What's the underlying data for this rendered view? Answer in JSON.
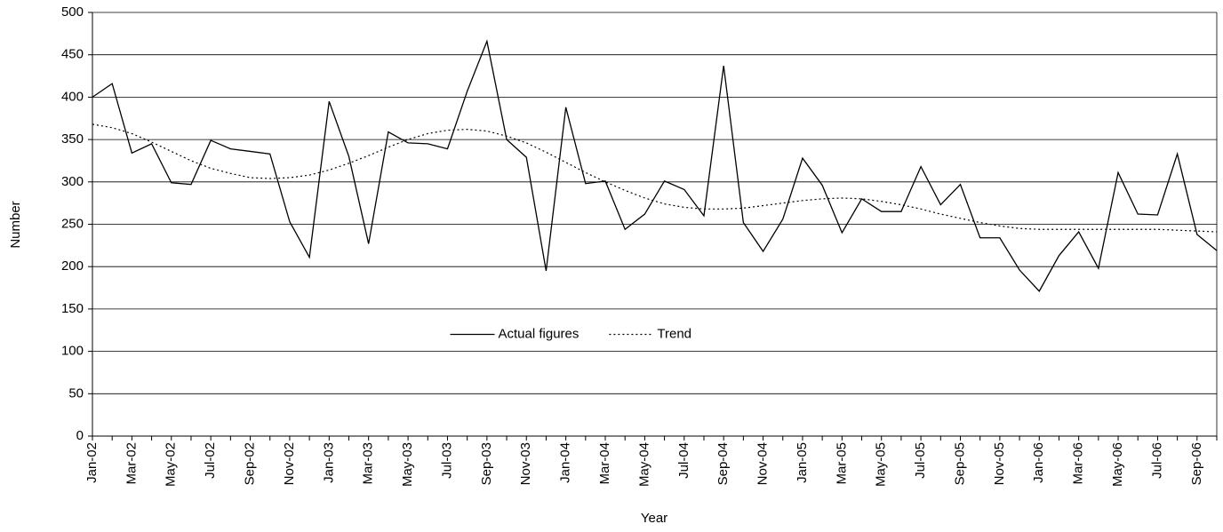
{
  "chart_data": {
    "type": "line",
    "x_label": "Year",
    "y_label": "Number",
    "categories": [
      "Jan-02",
      null,
      "Mar-02",
      null,
      "May-02",
      null,
      "Jul-02",
      null,
      "Sep-02",
      null,
      "Nov-02",
      null,
      "Jan-03",
      null,
      "Mar-03",
      null,
      "May-03",
      null,
      "Jul-03",
      null,
      "Sep-03",
      null,
      "Nov-03",
      null,
      "Jan-04",
      null,
      "Mar-04",
      null,
      "May-04",
      null,
      "Jul-04",
      null,
      "Sep-04",
      null,
      "Nov-04",
      null,
      "Jan-05",
      null,
      "Mar-05",
      null,
      "May-05",
      null,
      "Jul-05",
      null,
      "Sep-05",
      null,
      "Nov-05",
      null,
      "Jan-06",
      null,
      "Mar-06",
      null,
      "May-06",
      null,
      "Jul-06",
      null,
      "Sep-06",
      null
    ],
    "series": [
      {
        "name": "Actual figures",
        "color": "#000000",
        "dash": "solid",
        "values": [
          400,
          416,
          334,
          345,
          299,
          297,
          349,
          339,
          336,
          333,
          253,
          211,
          395,
          330,
          227,
          359,
          346,
          345,
          339,
          407,
          466,
          350,
          329,
          195,
          388,
          298,
          301,
          244,
          262,
          301,
          291,
          260,
          437,
          252,
          218,
          256,
          328,
          296,
          240,
          280,
          265,
          265,
          318,
          273,
          297,
          234,
          234,
          196,
          171,
          213,
          241,
          198,
          311,
          262,
          261,
          333,
          238,
          219
        ]
      },
      {
        "name": "Trend",
        "color": "#000000",
        "dash": "dotted",
        "values": [
          368,
          364,
          357,
          347,
          336,
          325,
          316,
          310,
          305,
          304,
          305,
          308,
          314,
          322,
          331,
          341,
          350,
          357,
          361,
          362,
          360,
          354,
          346,
          335,
          323,
          311,
          300,
          290,
          281,
          274,
          270,
          268,
          268,
          269,
          272,
          275,
          278,
          280,
          281,
          280,
          277,
          273,
          268,
          262,
          257,
          252,
          248,
          245,
          244,
          244,
          244,
          244,
          244,
          244,
          244,
          243,
          242,
          241
        ]
      }
    ],
    "ylim": [
      0,
      500
    ],
    "yticks": [
      0,
      50,
      100,
      150,
      200,
      250,
      300,
      350,
      400,
      450,
      500
    ],
    "grid": true,
    "legend": "center"
  }
}
